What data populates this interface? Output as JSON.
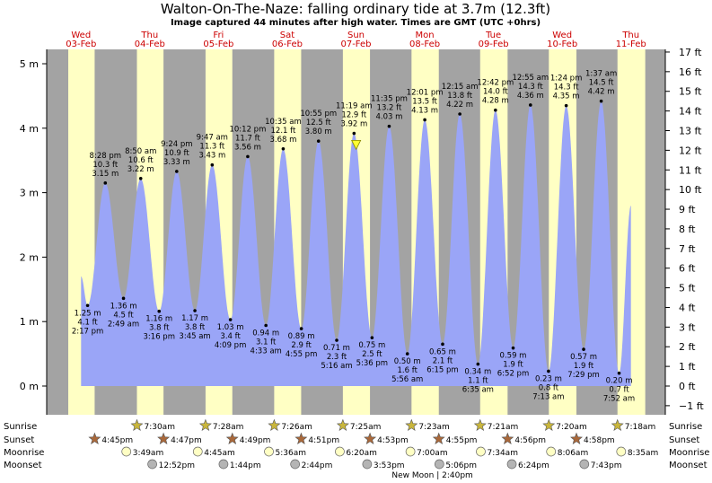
{
  "title": "Walton-On-The-Naze: falling  ordinary tide at 3.7m (12.3ft)",
  "subtitle": "Image captured 44 minutes after high water. Times are GMT (UTC +0hrs)",
  "colors": {
    "water": "#9aa5f7",
    "day": "#ffffc4",
    "night": "#a3a3a3",
    "day_label": "#cc0000",
    "sun_star": "#c9b63c",
    "sunset_star": "#a9683a",
    "moonrise": "#ffffc4",
    "moonset": "#b4b4b4",
    "now_marker": "#ffff33"
  },
  "chart_data": {
    "type": "area",
    "y_left_unit": "m",
    "y_right_unit": "ft",
    "y_left_ticks": [
      0,
      1,
      2,
      3,
      4,
      5
    ],
    "y_left_tick_labels": [
      "0 m",
      "1 m",
      "2 m",
      "3 m",
      "4 m",
      "5 m"
    ],
    "y_right_ticks": [
      -1,
      0,
      1,
      2,
      3,
      4,
      5,
      6,
      7,
      8,
      9,
      10,
      11,
      12,
      13,
      14,
      15,
      16,
      17
    ],
    "y_right_tick_labels": [
      "−1 ft",
      "0 ft",
      "1 ft",
      "2 ft",
      "3 ft",
      "4 ft",
      "5 ft",
      "6 ft",
      "7 ft",
      "8 ft",
      "9 ft",
      "10 ft",
      "11 ft",
      "12 ft",
      "13 ft",
      "14 ft",
      "15 ft",
      "16 ft",
      "17 ft"
    ],
    "ylim_m": [
      -0.4,
      5.2
    ],
    "x_start": "03-Feb 00:00",
    "x_end": "11-Feb 24:00",
    "days": [
      {
        "weekday": "Wed",
        "date": "03-Feb"
      },
      {
        "weekday": "Thu",
        "date": "04-Feb"
      },
      {
        "weekday": "Fri",
        "date": "05-Feb"
      },
      {
        "weekday": "Sat",
        "date": "06-Feb"
      },
      {
        "weekday": "Sun",
        "date": "07-Feb"
      },
      {
        "weekday": "Mon",
        "date": "08-Feb"
      },
      {
        "weekday": "Tue",
        "date": "09-Feb"
      },
      {
        "weekday": "Wed",
        "date": "10-Feb"
      },
      {
        "weekday": "Thu",
        "date": "11-Feb"
      }
    ],
    "tide_start": {
      "time": "03-Feb 12:00",
      "height_m": 1.7
    },
    "tide_end": {
      "time": "11-Feb 12:00",
      "height_m": 2.8
    },
    "extremes": [
      {
        "type": "low",
        "date": "03-Feb",
        "time_label": "2:17 pm",
        "time": "14:17",
        "height_m": 1.25,
        "m_label": "1.25 m",
        "ft_label": "4.1 ft"
      },
      {
        "type": "high",
        "date": "03-Feb",
        "time_label": "8:28 pm",
        "time": "20:28",
        "height_m": 3.15,
        "m_label": "3.15 m",
        "ft_label": "10.3 ft"
      },
      {
        "type": "low",
        "date": "04-Feb",
        "time_label": "2:49 am",
        "time": "02:49",
        "height_m": 1.36,
        "m_label": "1.36 m",
        "ft_label": "4.5 ft"
      },
      {
        "type": "high",
        "date": "04-Feb",
        "time_label": "8:50 am",
        "time": "08:50",
        "height_m": 3.22,
        "m_label": "3.22 m",
        "ft_label": "10.6 ft"
      },
      {
        "type": "low",
        "date": "04-Feb",
        "time_label": "3:16 pm",
        "time": "15:16",
        "height_m": 1.16,
        "m_label": "1.16 m",
        "ft_label": "3.8 ft"
      },
      {
        "type": "high",
        "date": "04-Feb",
        "time_label": "9:24 pm",
        "time": "21:24",
        "height_m": 3.33,
        "m_label": "3.33 m",
        "ft_label": "10.9 ft"
      },
      {
        "type": "low",
        "date": "05-Feb",
        "time_label": "3:45 am",
        "time": "03:45",
        "height_m": 1.17,
        "m_label": "1.17 m",
        "ft_label": "3.8 ft"
      },
      {
        "type": "high",
        "date": "05-Feb",
        "time_label": "9:47 am",
        "time": "09:47",
        "height_m": 3.43,
        "m_label": "3.43 m",
        "ft_label": "11.3 ft"
      },
      {
        "type": "low",
        "date": "05-Feb",
        "time_label": "4:09 pm",
        "time": "16:09",
        "height_m": 1.03,
        "m_label": "1.03 m",
        "ft_label": "3.4 ft"
      },
      {
        "type": "high",
        "date": "05-Feb",
        "time_label": "10:12 pm",
        "time": "22:12",
        "height_m": 3.56,
        "m_label": "3.56 m",
        "ft_label": "11.7 ft"
      },
      {
        "type": "low",
        "date": "06-Feb",
        "time_label": "4:33 am",
        "time": "04:33",
        "height_m": 0.94,
        "m_label": "0.94 m",
        "ft_label": "3.1 ft"
      },
      {
        "type": "high",
        "date": "06-Feb",
        "time_label": "10:35 am",
        "time": "10:35",
        "height_m": 3.68,
        "m_label": "3.68 m",
        "ft_label": "12.1 ft"
      },
      {
        "type": "low",
        "date": "06-Feb",
        "time_label": "4:55 pm",
        "time": "16:55",
        "height_m": 0.89,
        "m_label": "0.89 m",
        "ft_label": "2.9 ft"
      },
      {
        "type": "high",
        "date": "06-Feb",
        "time_label": "10:55 pm",
        "time": "22:55",
        "height_m": 3.8,
        "m_label": "3.80 m",
        "ft_label": "12.5 ft"
      },
      {
        "type": "low",
        "date": "07-Feb",
        "time_label": "5:16 am",
        "time": "05:16",
        "height_m": 0.71,
        "m_label": "0.71 m",
        "ft_label": "2.3 ft"
      },
      {
        "type": "high",
        "date": "07-Feb",
        "time_label": "11:19 am",
        "time": "11:19",
        "height_m": 3.92,
        "m_label": "3.92 m",
        "ft_label": "12.9 ft"
      },
      {
        "type": "low",
        "date": "07-Feb",
        "time_label": "5:36 pm",
        "time": "17:36",
        "height_m": 0.75,
        "m_label": "0.75 m",
        "ft_label": "2.5 ft"
      },
      {
        "type": "high",
        "date": "07-Feb",
        "time_label": "11:35 pm",
        "time": "23:35",
        "height_m": 4.03,
        "m_label": "4.03 m",
        "ft_label": "13.2 ft"
      },
      {
        "type": "low",
        "date": "08-Feb",
        "time_label": "5:56 am",
        "time": "05:56",
        "height_m": 0.5,
        "m_label": "0.50 m",
        "ft_label": "1.6 ft"
      },
      {
        "type": "high",
        "date": "08-Feb",
        "time_label": "12:01 pm",
        "time": "12:01",
        "height_m": 4.13,
        "m_label": "4.13 m",
        "ft_label": "13.5 ft"
      },
      {
        "type": "low",
        "date": "08-Feb",
        "time_label": "6:15 pm",
        "time": "18:15",
        "height_m": 0.65,
        "m_label": "0.65 m",
        "ft_label": "2.1 ft"
      },
      {
        "type": "high",
        "date": "09-Feb",
        "time_label": "12:15 am",
        "time": "00:15",
        "height_m": 4.22,
        "m_label": "4.22 m",
        "ft_label": "13.8 ft"
      },
      {
        "type": "low",
        "date": "09-Feb",
        "time_label": "6:35 am",
        "time": "06:35",
        "height_m": 0.34,
        "m_label": "0.34 m",
        "ft_label": "1.1 ft"
      },
      {
        "type": "high",
        "date": "09-Feb",
        "time_label": "12:42 pm",
        "time": "12:42",
        "height_m": 4.28,
        "m_label": "4.28 m",
        "ft_label": "14.0 ft"
      },
      {
        "type": "low",
        "date": "09-Feb",
        "time_label": "6:52 pm",
        "time": "18:52",
        "height_m": 0.59,
        "m_label": "0.59 m",
        "ft_label": "1.9 ft"
      },
      {
        "type": "high",
        "date": "10-Feb",
        "time_label": "12:55 am",
        "time": "00:55",
        "height_m": 4.36,
        "m_label": "4.36 m",
        "ft_label": "14.3 ft"
      },
      {
        "type": "low",
        "date": "10-Feb",
        "time_label": "7:13 am",
        "time": "07:13",
        "height_m": 0.23,
        "m_label": "0.23 m",
        "ft_label": "0.8 ft"
      },
      {
        "type": "high",
        "date": "10-Feb",
        "time_label": "1:24 pm",
        "time": "13:24",
        "height_m": 4.35,
        "m_label": "4.35 m",
        "ft_label": "14.3 ft"
      },
      {
        "type": "low",
        "date": "10-Feb",
        "time_label": "7:29 pm",
        "time": "19:29",
        "height_m": 0.57,
        "m_label": "0.57 m",
        "ft_label": "1.9 ft"
      },
      {
        "type": "high",
        "date": "11-Feb",
        "time_label": "1:37 am",
        "time": "01:37",
        "height_m": 4.42,
        "m_label": "4.42 m",
        "ft_label": "14.5 ft"
      },
      {
        "type": "low",
        "date": "11-Feb",
        "time_label": "7:52 am",
        "time": "07:52",
        "height_m": 0.2,
        "m_label": "0.20 m",
        "ft_label": "0.7 ft"
      }
    ],
    "current": {
      "time": "07-Feb 12:03",
      "height_m": 3.7
    },
    "daylight": [
      {
        "date": "03-Feb",
        "sunrise": "07:32",
        "sunset": "16:45"
      },
      {
        "date": "04-Feb",
        "sunrise": "07:30",
        "sunset": "16:47"
      },
      {
        "date": "05-Feb",
        "sunrise": "07:28",
        "sunset": "16:49"
      },
      {
        "date": "06-Feb",
        "sunrise": "07:26",
        "sunset": "16:51"
      },
      {
        "date": "07-Feb",
        "sunrise": "07:25",
        "sunset": "16:53"
      },
      {
        "date": "08-Feb",
        "sunrise": "07:23",
        "sunset": "16:55"
      },
      {
        "date": "09-Feb",
        "sunrise": "07:21",
        "sunset": "16:56"
      },
      {
        "date": "10-Feb",
        "sunrise": "07:20",
        "sunset": "16:58"
      },
      {
        "date": "11-Feb",
        "sunrise": "07:18",
        "sunset": "17:00"
      }
    ]
  },
  "footer": {
    "row_labels": [
      "Sunrise",
      "Sunset",
      "Moonrise",
      "Moonset"
    ],
    "sunrise": [
      {
        "date": "04-Feb",
        "label": "7:30am"
      },
      {
        "date": "05-Feb",
        "label": "7:28am"
      },
      {
        "date": "06-Feb",
        "label": "7:26am"
      },
      {
        "date": "07-Feb",
        "label": "7:25am"
      },
      {
        "date": "08-Feb",
        "label": "7:23am"
      },
      {
        "date": "09-Feb",
        "label": "7:21am"
      },
      {
        "date": "10-Feb",
        "label": "7:20am"
      },
      {
        "date": "11-Feb",
        "label": "7:18am"
      }
    ],
    "sunset": [
      {
        "date": "03-Feb",
        "label": "4:45pm"
      },
      {
        "date": "04-Feb",
        "label": "4:47pm"
      },
      {
        "date": "05-Feb",
        "label": "4:49pm"
      },
      {
        "date": "06-Feb",
        "label": "4:51pm"
      },
      {
        "date": "07-Feb",
        "label": "4:53pm"
      },
      {
        "date": "08-Feb",
        "label": "4:55pm"
      },
      {
        "date": "09-Feb",
        "label": "4:56pm"
      },
      {
        "date": "10-Feb",
        "label": "4:58pm"
      }
    ],
    "moonrise": [
      {
        "date": "04-Feb",
        "label": "3:49am"
      },
      {
        "date": "05-Feb",
        "label": "4:45am"
      },
      {
        "date": "06-Feb",
        "label": "5:36am"
      },
      {
        "date": "07-Feb",
        "label": "6:20am"
      },
      {
        "date": "08-Feb",
        "label": "7:00am"
      },
      {
        "date": "09-Feb",
        "label": "7:34am"
      },
      {
        "date": "10-Feb",
        "label": "8:06am"
      },
      {
        "date": "11-Feb",
        "label": "8:35am"
      }
    ],
    "moonset": [
      {
        "date": "04-Feb",
        "label": "12:52pm"
      },
      {
        "date": "05-Feb",
        "label": "1:44pm"
      },
      {
        "date": "06-Feb",
        "label": "2:44pm"
      },
      {
        "date": "07-Feb",
        "label": "3:53pm"
      },
      {
        "date": "08-Feb",
        "label": "5:06pm"
      },
      {
        "date": "09-Feb",
        "label": "6:24pm"
      },
      {
        "date": "10-Feb",
        "label": "7:43pm"
      }
    ],
    "new_moon_label": "New Moon | 2:40pm",
    "new_moon_date": "08-Feb"
  }
}
